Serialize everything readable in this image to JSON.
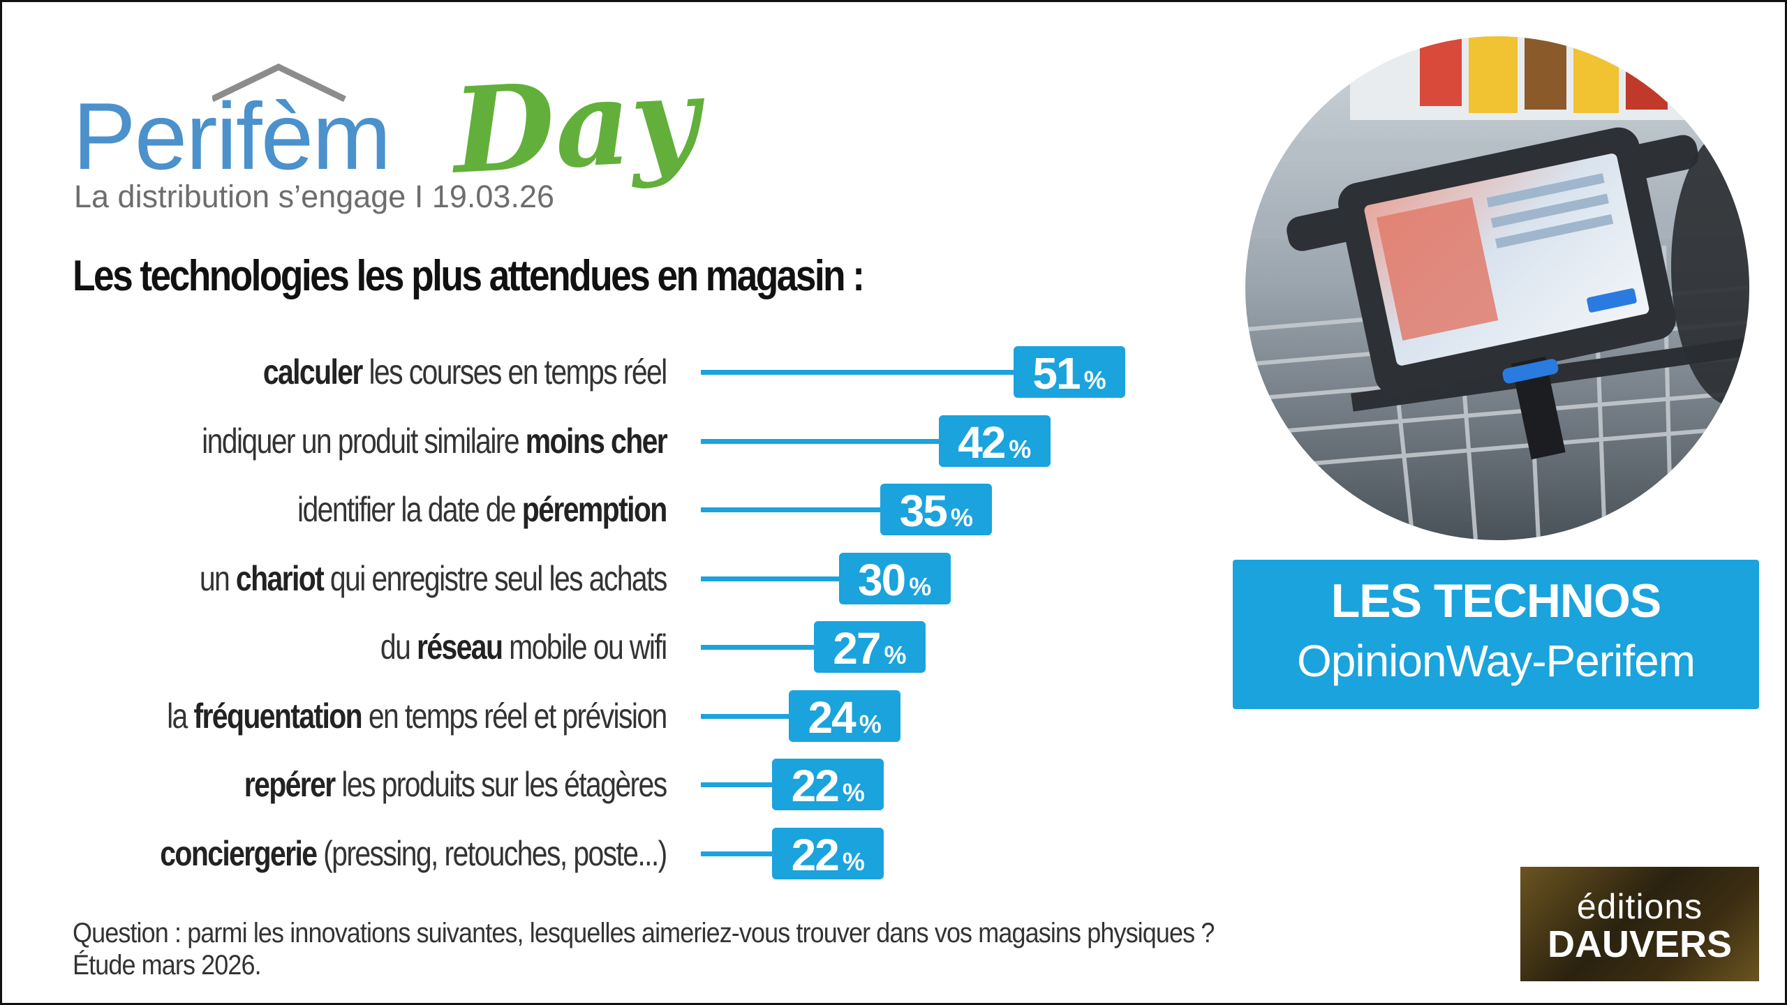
{
  "logo": {
    "word": "Perifèm",
    "day": "Day",
    "tagline": "La distribution s’engage I 19.03.26"
  },
  "chart_data": {
    "type": "bar",
    "orientation": "horizontal",
    "title": "Les technologies les plus attendues en magasin :",
    "unit": "%",
    "categories": [
      {
        "parts": [
          {
            "t": "calculer",
            "b": true
          },
          {
            "t": " les courses en temps réel",
            "b": false
          }
        ]
      },
      {
        "parts": [
          {
            "t": "indiquer un produit similaire ",
            "b": false
          },
          {
            "t": "moins cher",
            "b": true
          }
        ]
      },
      {
        "parts": [
          {
            "t": "identifier la date de ",
            "b": false
          },
          {
            "t": "péremption",
            "b": true
          }
        ]
      },
      {
        "parts": [
          {
            "t": "un ",
            "b": false
          },
          {
            "t": "chariot",
            "b": true
          },
          {
            "t": " qui enregistre seul les achats",
            "b": false
          }
        ]
      },
      {
        "parts": [
          {
            "t": "du ",
            "b": false
          },
          {
            "t": "réseau",
            "b": true
          },
          {
            "t": " mobile ou wifi",
            "b": false
          }
        ]
      },
      {
        "parts": [
          {
            "t": "la ",
            "b": false
          },
          {
            "t": "fréquentation",
            "b": true
          },
          {
            "t": " en temps réel et prévision",
            "b": false
          }
        ]
      },
      {
        "parts": [
          {
            "t": "repérer",
            "b": true
          },
          {
            "t": " les produits sur les étagères",
            "b": false
          }
        ]
      },
      {
        "parts": [
          {
            "t": "conciergerie",
            "b": true
          },
          {
            "t": " (pressing, retouches, poste...)",
            "b": false
          }
        ]
      }
    ],
    "values": [
      51,
      42,
      35,
      30,
      27,
      24,
      22,
      22
    ],
    "xlim": [
      0,
      51
    ],
    "color": "#1aa3dd",
    "grid": false,
    "legend": "none"
  },
  "technos": {
    "title": "LES TECHNOS",
    "subtitle": "OpinionWay-Perifem"
  },
  "footer": {
    "question": "Question : parmi les innovations suivantes, lesquelles aimeriez-vous trouver dans vos magasins physiques ?",
    "study": "Étude mars 2026."
  },
  "publisher": {
    "line1": "éditions",
    "line2": "DAUVERS"
  },
  "colors": {
    "accent": "#1aa3dd",
    "logo_blue": "#4b91cc",
    "logo_green": "#62b03b"
  },
  "photo": {
    "description_icon": "shopping-cart-tablet-photo"
  }
}
